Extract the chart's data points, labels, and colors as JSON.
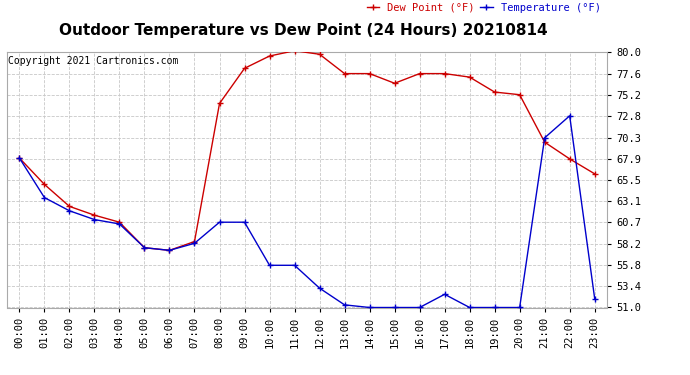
{
  "title": "Outdoor Temperature vs Dew Point (24 Hours) 20210814",
  "copyright": "Copyright 2021 Cartronics.com",
  "legend_dew": "Dew Point (°F)",
  "legend_temp": "Temperature (°F)",
  "x_labels": [
    "00:00",
    "01:00",
    "02:00",
    "03:00",
    "04:00",
    "05:00",
    "06:00",
    "07:00",
    "08:00",
    "09:00",
    "10:00",
    "11:00",
    "12:00",
    "13:00",
    "14:00",
    "15:00",
    "16:00",
    "17:00",
    "18:00",
    "19:00",
    "20:00",
    "21:00",
    "22:00",
    "23:00"
  ],
  "temperature": [
    68.0,
    63.5,
    62.0,
    61.0,
    60.5,
    57.8,
    57.5,
    58.3,
    60.7,
    60.7,
    55.8,
    55.8,
    53.2,
    51.3,
    51.0,
    51.0,
    51.0,
    52.5,
    51.0,
    51.0,
    51.0,
    70.3,
    72.8,
    52.0
  ],
  "dew_point": [
    68.0,
    65.0,
    62.5,
    61.5,
    60.7,
    57.8,
    57.5,
    58.5,
    74.2,
    78.2,
    79.6,
    80.2,
    79.8,
    77.6,
    77.6,
    76.5,
    77.6,
    77.6,
    77.2,
    75.5,
    75.2,
    69.8,
    67.9,
    66.2
  ],
  "ylim": [
    51.0,
    80.0
  ],
  "yticks": [
    51.0,
    53.4,
    55.8,
    58.2,
    60.7,
    63.1,
    65.5,
    67.9,
    70.3,
    72.8,
    75.2,
    77.6,
    80.0
  ],
  "temp_color": "#0000cc",
  "dew_color": "#cc0000",
  "marker": "+",
  "bg_color": "#ffffff",
  "grid_color": "#c8c8c8",
  "title_fontsize": 11,
  "label_fontsize": 7.5,
  "copyright_fontsize": 7
}
